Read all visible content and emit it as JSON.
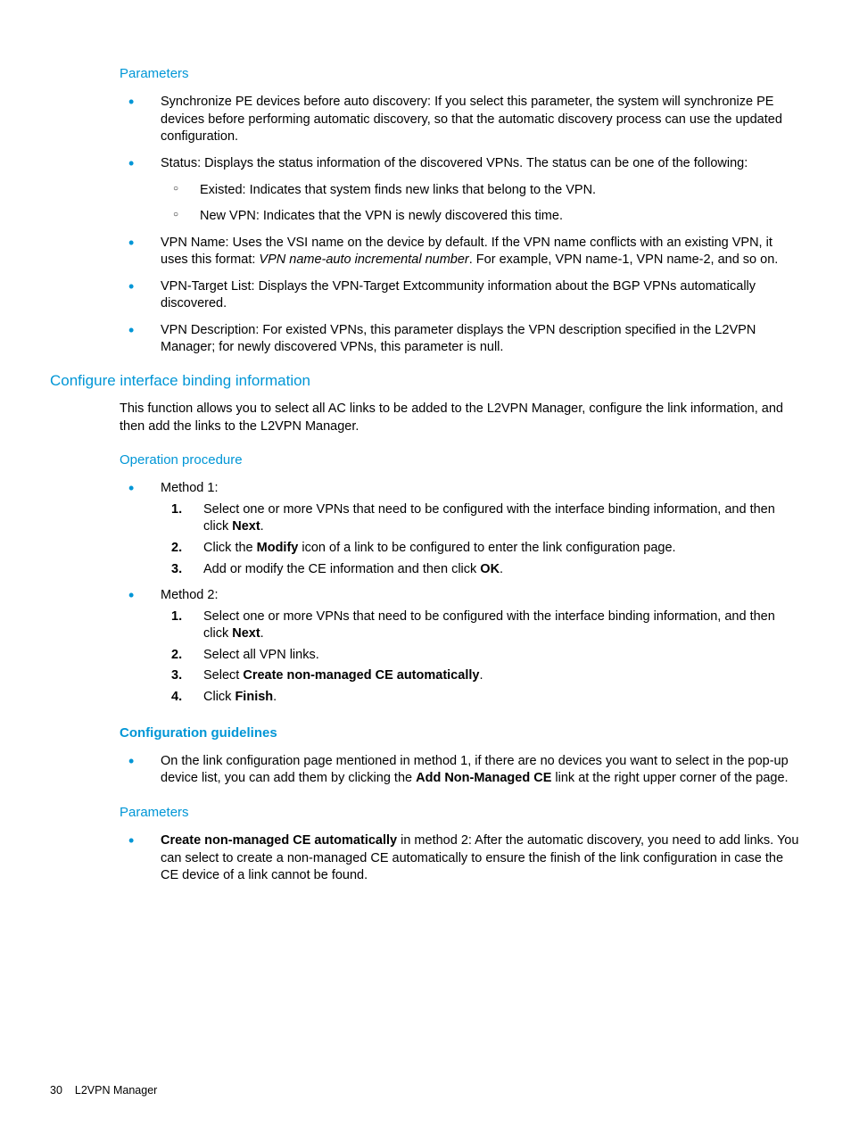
{
  "colors": {
    "accent": "#0096d6",
    "text": "#000000",
    "bg": "#ffffff"
  },
  "sec1": {
    "heading": "Parameters",
    "b1": "Synchronize PE devices before auto discovery: If you select this parameter, the system will synchronize PE devices before performing automatic discovery, so that the automatic discovery process can use the updated configuration.",
    "b2": "Status: Displays the status information of the discovered VPNs. The status can be one of the following:",
    "b2s1": "Existed: Indicates that system finds new links that belong to the VPN.",
    "b2s2": "New VPN: Indicates that the VPN is newly discovered this time.",
    "b3a": "VPN Name: Uses the VSI name on the device by default. If the VPN name conflicts with an existing VPN, it uses this format: ",
    "b3i": "VPN name-auto incremental number",
    "b3b": ". For example, VPN name-1, VPN name-2, and so on.",
    "b4": "VPN-Target List: Displays the VPN-Target Extcommunity information about the BGP VPNs automatically discovered.",
    "b5": "VPN Description: For existed VPNs, this parameter displays the VPN description specified in the L2VPN Manager; for newly discovered VPNs, this parameter is null."
  },
  "sec2": {
    "heading": "Configure interface binding information",
    "intro": "This function allows you to select all AC links to be added to the L2VPN Manager, configure the link information, and then add the links to the L2VPN Manager.",
    "opHeading": "Operation procedure",
    "m1": "Method 1:",
    "m1s1a": "Select one or more VPNs that need to be configured with the interface binding information, and then click ",
    "m1s1b": "Next",
    "m1s1c": ".",
    "m1s2a": "Click the ",
    "m1s2b": "Modify",
    "m1s2c": " icon of a link to be configured to enter the link configuration page.",
    "m1s3a": "Add or modify the CE information and then click ",
    "m1s3b": "OK",
    "m1s3c": ".",
    "m2": "Method 2:",
    "m2s1a": "Select one or more VPNs that need to be configured with the interface binding information, and then click ",
    "m2s1b": "Next",
    "m2s1c": ".",
    "m2s2": "Select all VPN links.",
    "m2s3a": "Select ",
    "m2s3b": "Create non-managed CE automatically",
    "m2s3c": ".",
    "m2s4a": "Click ",
    "m2s4b": "Finish",
    "m2s4c": "."
  },
  "sec3": {
    "heading": "Configuration guidelines",
    "b1a": "On the link configuration page mentioned in method 1, if there are no devices you want to select in the pop-up device list, you can add them by clicking the ",
    "b1b": "Add Non-Managed CE",
    "b1c": " link at the right upper corner of the page."
  },
  "sec4": {
    "heading": "Parameters",
    "b1a": "Create non-managed CE automatically",
    "b1b": " in method 2: After the automatic discovery, you need to add links. You can select to create a non-managed CE automatically to ensure the finish of the link configuration in case the CE device of a link cannot be found."
  },
  "footer": {
    "page": "30",
    "title": "L2VPN Manager"
  }
}
